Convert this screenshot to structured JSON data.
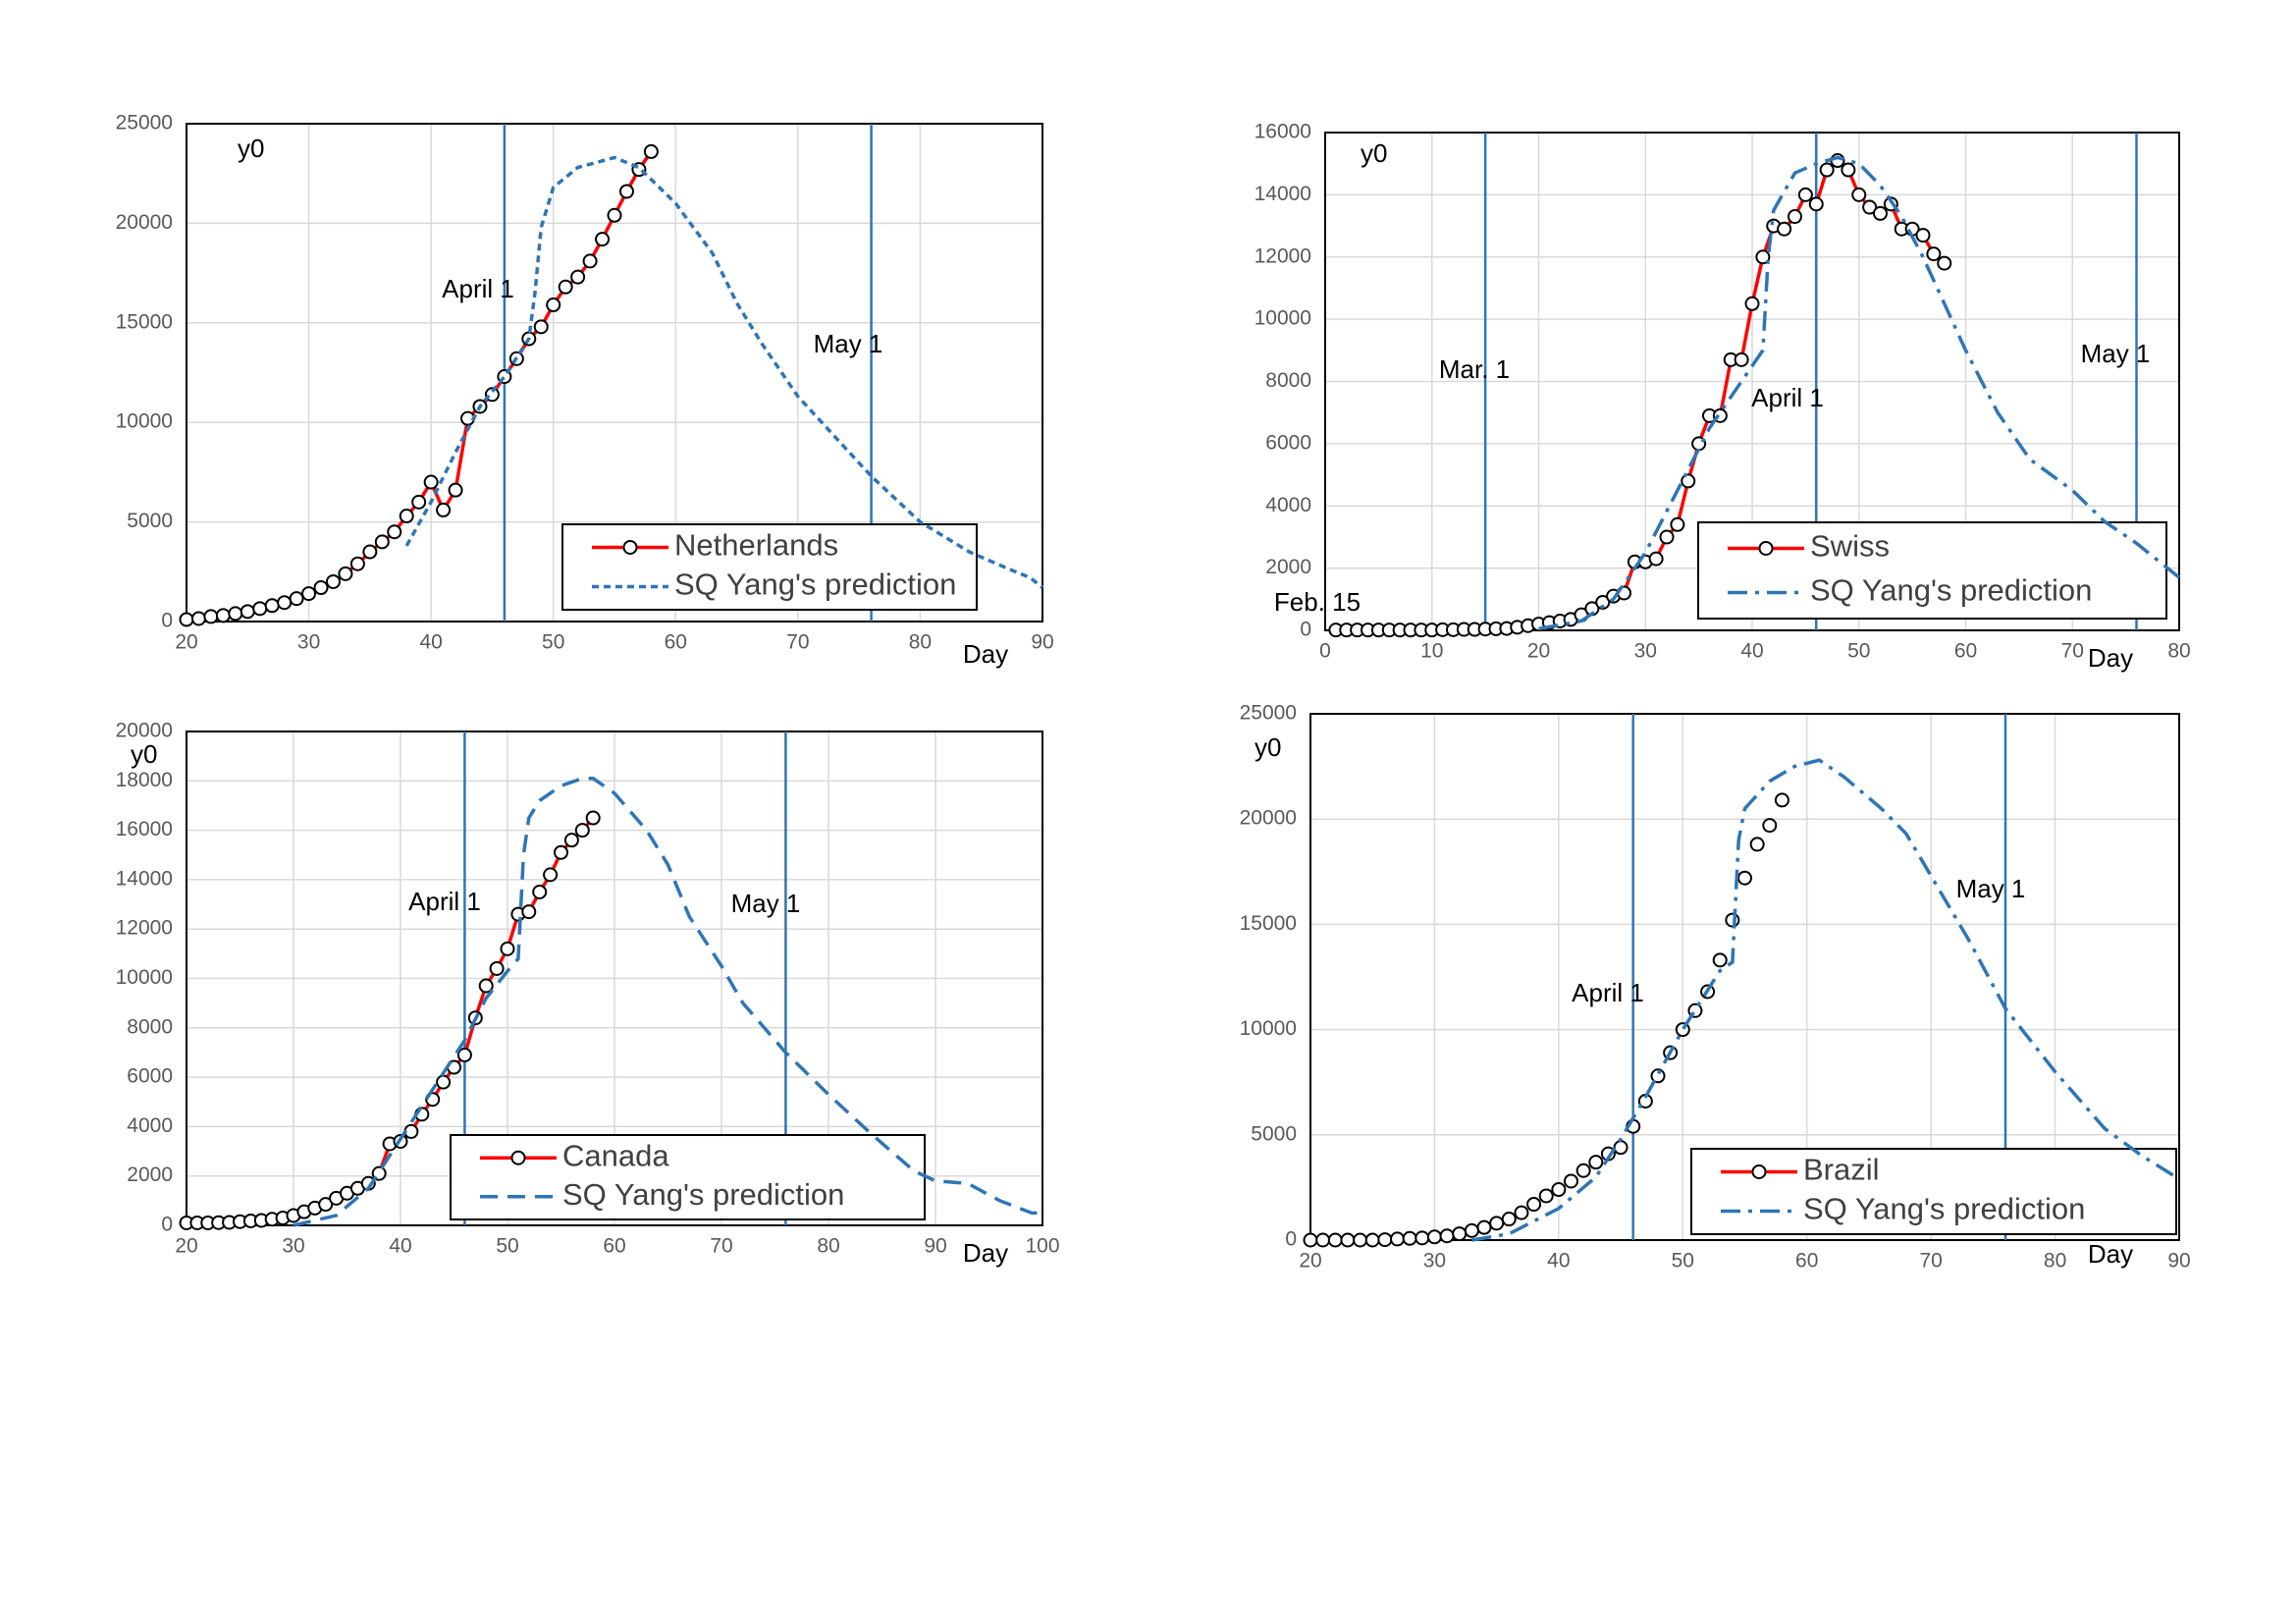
{
  "chart_data": [
    {
      "type": "line",
      "y_label": "y0",
      "x_label": "Day",
      "xlim": [
        20,
        90
      ],
      "xticks": [
        20,
        30,
        40,
        50,
        60,
        70,
        80,
        90
      ],
      "ylim": [
        0,
        25000
      ],
      "yticks": [
        0,
        5000,
        10000,
        15000,
        20000,
        25000
      ],
      "grid": true,
      "vlines": [
        {
          "value": 46,
          "label": "April 1"
        },
        {
          "value": 76,
          "label": "May 1"
        }
      ],
      "series": [
        {
          "name": "Netherlands",
          "color": "#ff0000",
          "line_style": "solid",
          "markers": true,
          "show_line": true,
          "x": [
            20,
            21,
            22,
            23,
            24,
            25,
            26,
            27,
            28,
            29,
            30,
            31,
            32,
            33,
            34,
            35,
            36,
            37,
            38,
            39,
            40,
            41,
            42,
            43,
            44,
            45,
            46,
            47,
            48,
            49,
            50,
            51,
            52,
            53,
            54,
            55,
            56,
            57,
            58
          ],
          "values": [
            100,
            150,
            250,
            300,
            400,
            500,
            650,
            800,
            950,
            1150,
            1400,
            1700,
            2000,
            2400,
            2900,
            3500,
            4000,
            4500,
            5300,
            6000,
            7000,
            5600,
            6600,
            10200,
            10800,
            11400,
            12300,
            13200,
            14200,
            14800,
            15900,
            16800,
            17300,
            18100,
            19200,
            20400,
            21600,
            22700,
            23600
          ]
        },
        {
          "name": "SQ Yang's prediction",
          "color": "#2e75b6",
          "line_style": "dashed",
          "markers": false,
          "show_line": true,
          "x": [
            38,
            40,
            42,
            44,
            46,
            48,
            48.5,
            49,
            50,
            52,
            55,
            57,
            60,
            63,
            65,
            67,
            70,
            73,
            76,
            80,
            84,
            87,
            89,
            90
          ],
          "values": [
            3800,
            6000,
            8500,
            10800,
            12300,
            14200,
            16500,
            19800,
            21800,
            22800,
            23300,
            22800,
            21000,
            18500,
            16000,
            14000,
            11300,
            9300,
            7300,
            5000,
            3500,
            2700,
            2200,
            1700
          ]
        }
      ]
    },
    {
      "type": "line",
      "y_label": "y0",
      "x_label": "Day",
      "annotation": "Feb. 15",
      "xlim": [
        0,
        80
      ],
      "xticks": [
        0,
        10,
        20,
        30,
        40,
        50,
        60,
        70,
        80
      ],
      "ylim": [
        0,
        16000
      ],
      "yticks": [
        0,
        2000,
        4000,
        6000,
        8000,
        10000,
        12000,
        14000,
        16000
      ],
      "grid": true,
      "vlines": [
        {
          "value": 15,
          "label": "Mar. 1"
        },
        {
          "value": 46,
          "label": "April 1"
        },
        {
          "value": 76,
          "label": "May 1"
        }
      ],
      "series": [
        {
          "name": "Swiss",
          "color": "#ff0000",
          "line_style": "solid",
          "markers": true,
          "show_line": true,
          "x": [
            1,
            2,
            3,
            4,
            5,
            6,
            7,
            8,
            9,
            10,
            11,
            12,
            13,
            14,
            15,
            16,
            17,
            18,
            19,
            20,
            21,
            22,
            23,
            24,
            25,
            26,
            27,
            28,
            29,
            30,
            31,
            32,
            33,
            34,
            35,
            36,
            37,
            38,
            39,
            40,
            41,
            42,
            43,
            44,
            45,
            46,
            47,
            48,
            49,
            50,
            51,
            52,
            53,
            54,
            55,
            56,
            57,
            58
          ],
          "values": [
            10,
            10,
            10,
            10,
            10,
            10,
            10,
            10,
            10,
            10,
            20,
            20,
            30,
            30,
            40,
            50,
            60,
            100,
            150,
            200,
            250,
            300,
            350,
            500,
            700,
            900,
            1100,
            1200,
            2200,
            2200,
            2300,
            3000,
            3400,
            4800,
            6000,
            6900,
            6900,
            8700,
            8700,
            10500,
            12000,
            13000,
            12900,
            13300,
            14000,
            13700,
            14800,
            15100,
            14800,
            14000,
            13600,
            13400,
            13700,
            12900,
            12900,
            12700,
            12100,
            11800
          ]
        },
        {
          "name": "SQ Yang's prediction",
          "color": "#2e75b6",
          "line_style": "dashdot",
          "markers": false,
          "show_line": true,
          "x": [
            20,
            24,
            27,
            30,
            33,
            36,
            39,
            41,
            41.5,
            42,
            44,
            46,
            48,
            50,
            52,
            54,
            56,
            58,
            60,
            63,
            66,
            70,
            73,
            76,
            80
          ],
          "values": [
            50,
            300,
            1000,
            2500,
            4500,
            6500,
            8000,
            9000,
            12000,
            13500,
            14700,
            15000,
            15200,
            15000,
            14300,
            13300,
            12000,
            10500,
            9000,
            7000,
            5500,
            4500,
            3500,
            2800,
            1700
          ]
        }
      ]
    },
    {
      "type": "line",
      "y_label": "y0",
      "x_label": "Day",
      "xlim": [
        20,
        100
      ],
      "xticks": [
        20,
        30,
        40,
        50,
        60,
        70,
        80,
        90,
        100
      ],
      "ylim": [
        0,
        20000
      ],
      "yticks": [
        0,
        2000,
        4000,
        6000,
        8000,
        10000,
        12000,
        14000,
        16000,
        18000,
        20000
      ],
      "grid": true,
      "vlines": [
        {
          "value": 46,
          "label": "April 1"
        },
        {
          "value": 76,
          "label": "May 1"
        }
      ],
      "series": [
        {
          "name": "Canada",
          "color": "#ff0000",
          "line_style": "solid",
          "markers": true,
          "show_line": true,
          "x": [
            20,
            21,
            22,
            23,
            24,
            25,
            26,
            27,
            28,
            29,
            30,
            31,
            32,
            33,
            34,
            35,
            36,
            37,
            38,
            39,
            40,
            41,
            42,
            43,
            44,
            45,
            46,
            47,
            48,
            49,
            50,
            51,
            52,
            53,
            54,
            55,
            56,
            57,
            58
          ],
          "values": [
            100,
            100,
            100,
            110,
            120,
            150,
            180,
            200,
            250,
            300,
            400,
            550,
            700,
            850,
            1100,
            1300,
            1500,
            1700,
            2100,
            3300,
            3400,
            3800,
            4500,
            5100,
            5800,
            6400,
            6900,
            8400,
            9700,
            10400,
            11200,
            12600,
            12700,
            13500,
            14200,
            15100,
            15600,
            16000,
            16500
          ]
        },
        {
          "name": "SQ Yang's prediction",
          "color": "#2e75b6",
          "line_style": "longdash",
          "markers": false,
          "show_line": true,
          "x": [
            30,
            34,
            37,
            40,
            43,
            46,
            48,
            50,
            51,
            51.5,
            52,
            53,
            55,
            57,
            58,
            60,
            63,
            65,
            67,
            70,
            72,
            76,
            80,
            84,
            88,
            90,
            93,
            96,
            99,
            100
          ],
          "values": [
            0,
            400,
            1500,
            3500,
            5500,
            7500,
            9200,
            10300,
            10800,
            15000,
            16500,
            17200,
            17800,
            18100,
            18100,
            17500,
            16000,
            14600,
            12500,
            10500,
            9000,
            7000,
            5300,
            3700,
            2200,
            1800,
            1700,
            1000,
            500,
            500
          ]
        }
      ]
    },
    {
      "type": "line",
      "y_label": "y0",
      "x_label": "Day",
      "xlim": [
        20,
        90
      ],
      "xticks": [
        20,
        30,
        40,
        50,
        60,
        70,
        80,
        90
      ],
      "ylim": [
        0,
        25000
      ],
      "yticks": [
        0,
        5000,
        10000,
        15000,
        20000,
        25000
      ],
      "grid": true,
      "vlines": [
        {
          "value": 46,
          "label": "April 1"
        },
        {
          "value": 76,
          "label": "May 1"
        }
      ],
      "series": [
        {
          "name": "Brazil",
          "color": "#ff0000",
          "line_style": "solid",
          "markers": true,
          "show_line": false,
          "x": [
            20,
            21,
            22,
            23,
            24,
            25,
            26,
            27,
            28,
            29,
            30,
            31,
            32,
            33,
            34,
            35,
            36,
            37,
            38,
            39,
            40,
            41,
            42,
            43,
            44,
            45,
            46,
            47,
            48,
            49,
            50,
            51,
            52,
            53,
            54,
            55,
            56,
            57,
            58
          ],
          "values": [
            0,
            0,
            0,
            0,
            0,
            0,
            20,
            50,
            80,
            100,
            150,
            200,
            300,
            450,
            600,
            800,
            1000,
            1300,
            1700,
            2100,
            2400,
            2800,
            3300,
            3700,
            4100,
            4400,
            5400,
            6600,
            7800,
            8900,
            10000,
            10900,
            11800,
            13300,
            15200,
            17200,
            18800,
            19700,
            20900
          ]
        },
        {
          "name": "SQ Yang's prediction",
          "color": "#2e75b6",
          "line_style": "dashdot",
          "markers": false,
          "show_line": true,
          "x": [
            33,
            36,
            40,
            43,
            45,
            47,
            50,
            53,
            54,
            54.5,
            55,
            57,
            59,
            61,
            63,
            66,
            68,
            71,
            73,
            76,
            80,
            84,
            87,
            90
          ],
          "values": [
            0,
            300,
            1500,
            3000,
            4800,
            6800,
            10000,
            12800,
            13200,
            19000,
            20500,
            21800,
            22500,
            22800,
            22000,
            20500,
            19300,
            16300,
            14300,
            11000,
            8000,
            5300,
            4000,
            2900
          ]
        }
      ]
    }
  ]
}
